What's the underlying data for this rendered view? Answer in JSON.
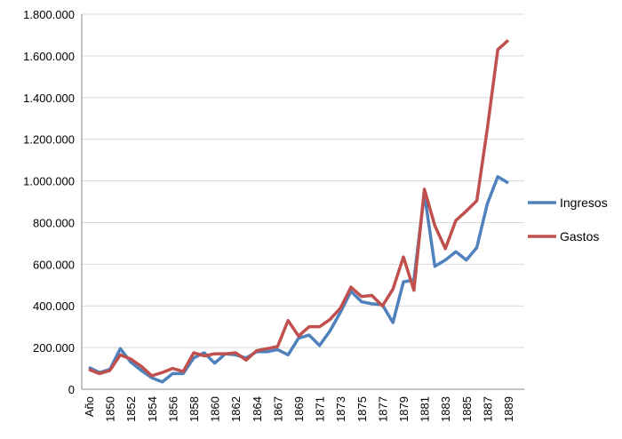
{
  "chart_data": {
    "type": "line",
    "categories": [
      "Año",
      null,
      "1850",
      null,
      "1852",
      null,
      "1854",
      null,
      "1856",
      null,
      "1858",
      null,
      "1860",
      null,
      "1862",
      null,
      "1864",
      null,
      "1867",
      null,
      "1869",
      null,
      "1871",
      null,
      "1873",
      null,
      "1875",
      null,
      "1877",
      null,
      "1879",
      null,
      "1881",
      null,
      "1883",
      null,
      "1885",
      null,
      "1887",
      null,
      "1889"
    ],
    "series": [
      {
        "name": "Ingresos",
        "color": "#4f81bd",
        "values": [
          105000,
          80000,
          95000,
          195000,
          130000,
          90000,
          55000,
          35000,
          75000,
          75000,
          150000,
          175000,
          125000,
          170000,
          165000,
          150000,
          180000,
          180000,
          190000,
          165000,
          245000,
          260000,
          210000,
          280000,
          370000,
          470000,
          420000,
          410000,
          405000,
          320000,
          515000,
          525000,
          940000,
          590000,
          620000,
          660000,
          620000,
          680000,
          890000,
          1020000,
          990000
        ]
      },
      {
        "name": "Gastos",
        "color": "#c0504d",
        "values": [
          95000,
          75000,
          90000,
          165000,
          145000,
          110000,
          65000,
          80000,
          100000,
          85000,
          175000,
          160000,
          170000,
          170000,
          175000,
          140000,
          185000,
          195000,
          205000,
          330000,
          255000,
          300000,
          300000,
          335000,
          390000,
          490000,
          445000,
          450000,
          400000,
          480000,
          635000,
          475000,
          960000,
          785000,
          675000,
          810000,
          855000,
          905000,
          1250000,
          1630000,
          1675000
        ]
      }
    ],
    "ylim": [
      0,
      1800000
    ],
    "yticks": [
      0,
      {
        "value": 200000,
        "label": "200.000"
      },
      {
        "value": 400000,
        "label": "400.000"
      },
      {
        "value": 600000,
        "label": "600.000"
      },
      {
        "value": 800000,
        "label": "800.000"
      },
      {
        "value": 1000000,
        "label": "1.000.000"
      },
      {
        "value": 1200000,
        "label": "1.200.000"
      },
      {
        "value": 1400000,
        "label": "1.400.000"
      },
      {
        "value": 1600000,
        "label": "1.600.000"
      },
      {
        "value": 1800000,
        "label": "1.800.000"
      }
    ],
    "grid": true,
    "legend": "right"
  }
}
